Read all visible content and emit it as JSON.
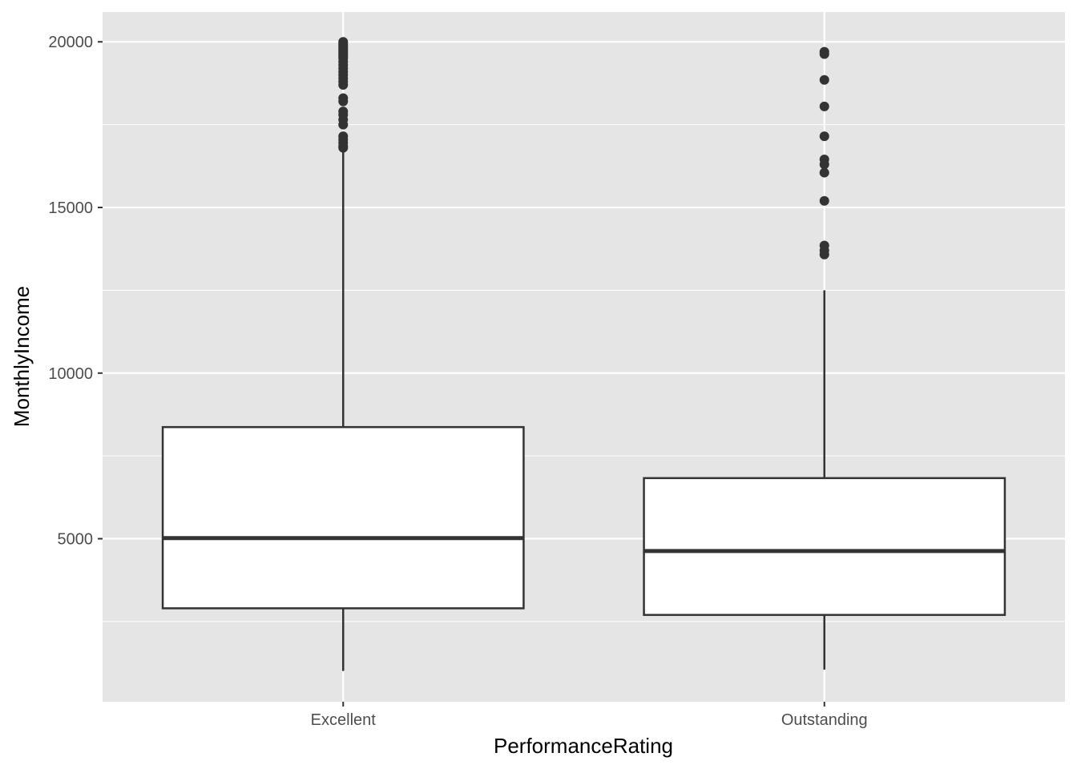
{
  "chart_data": {
    "type": "boxplot",
    "xlabel": "PerformanceRating",
    "ylabel": "MonthlyIncome",
    "ylim": [
      80,
      20900
    ],
    "y_ticks": [
      5000,
      10000,
      15000,
      20000
    ],
    "y_minor_ticks": [
      2500,
      7500,
      12500,
      17500
    ],
    "categories": [
      "Excellent",
      "Outstanding"
    ],
    "grid": true,
    "colors": {
      "panel": "#e5e5e5",
      "grid": "#ffffff",
      "box_fill": "#ffffff",
      "box_line": "#333333",
      "outlier": "#333333"
    },
    "boxes": [
      {
        "category": "Excellent",
        "whisker_low": 1009,
        "q1": 2900,
        "median": 5020,
        "q3": 8370,
        "whisker_high": 16800,
        "outliers": [
          19999,
          19950,
          19900,
          19850,
          19800,
          19750,
          19700,
          19650,
          19600,
          19550,
          19500,
          19400,
          19300,
          19200,
          19100,
          19000,
          18900,
          18800,
          18700,
          18300,
          18200,
          17900,
          17800,
          17650,
          17500,
          17150,
          17050,
          16950,
          16850,
          16800
        ]
      },
      {
        "category": "Outstanding",
        "whisker_low": 1050,
        "q1": 2700,
        "median": 4630,
        "q3": 6830,
        "whisker_high": 12500,
        "outliers": [
          19700,
          19630,
          18850,
          18050,
          17150,
          16450,
          16300,
          16050,
          15200,
          13850,
          13700,
          13580
        ]
      }
    ]
  }
}
